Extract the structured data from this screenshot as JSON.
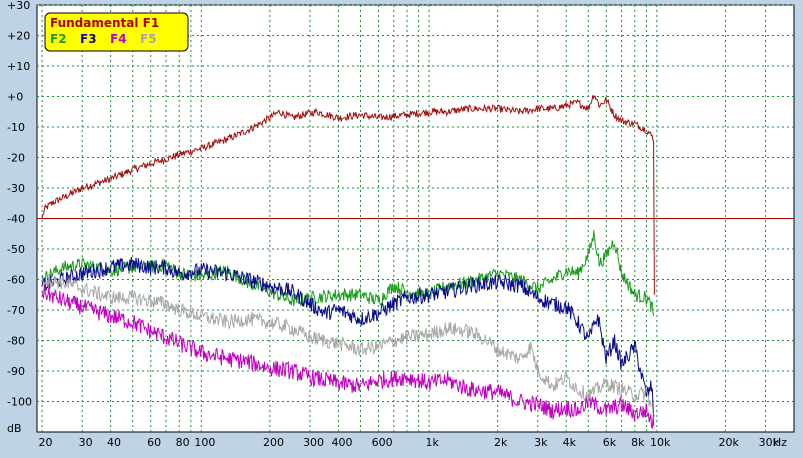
{
  "chart_data": {
    "type": "line",
    "title": "",
    "xlabel": "Hz",
    "ylabel": "dB",
    "xscale": "log",
    "xlim": [
      19,
      40000
    ],
    "ylim": [
      -110,
      30
    ],
    "grid": true,
    "legend_placement": "top-left",
    "y_ticks": [
      {
        "value": 30,
        "label": "+30"
      },
      {
        "value": 20,
        "label": "+20"
      },
      {
        "value": 10,
        "label": "+10"
      },
      {
        "value": 0,
        "label": "+0"
      },
      {
        "value": -10,
        "label": "-10"
      },
      {
        "value": -20,
        "label": "-20"
      },
      {
        "value": -30,
        "label": "-30"
      },
      {
        "value": -40,
        "label": "-40"
      },
      {
        "value": -50,
        "label": "-50"
      },
      {
        "value": -60,
        "label": "-60"
      },
      {
        "value": -70,
        "label": "-70"
      },
      {
        "value": -80,
        "label": "-80"
      },
      {
        "value": -90,
        "label": "-90"
      },
      {
        "value": -100,
        "label": "-100"
      }
    ],
    "x_ticks": [
      {
        "value": 20,
        "label": "20"
      },
      {
        "value": 30,
        "label": "30"
      },
      {
        "value": 40,
        "label": "40"
      },
      {
        "value": 60,
        "label": "60"
      },
      {
        "value": 80,
        "label": "80"
      },
      {
        "value": 100,
        "label": "100"
      },
      {
        "value": 200,
        "label": "200"
      },
      {
        "value": 300,
        "label": "300"
      },
      {
        "value": 400,
        "label": "400"
      },
      {
        "value": 600,
        "label": "600"
      },
      {
        "value": 1000,
        "label": "1k"
      },
      {
        "value": 2000,
        "label": "2k"
      },
      {
        "value": 3000,
        "label": "3k"
      },
      {
        "value": 4000,
        "label": "4k"
      },
      {
        "value": 6000,
        "label": "6k"
      },
      {
        "value": 8000,
        "label": "8k"
      },
      {
        "value": 10000,
        "label": "10k"
      },
      {
        "value": 20000,
        "label": "20k"
      },
      {
        "value": 30000,
        "label": "30k"
      }
    ],
    "minor_x_gridlines": [
      20,
      30,
      40,
      50,
      60,
      70,
      80,
      90,
      100,
      200,
      300,
      400,
      500,
      600,
      700,
      800,
      900,
      1000,
      2000,
      3000,
      4000,
      5000,
      6000,
      7000,
      8000,
      9000,
      10000,
      20000,
      30000,
      40000
    ],
    "reference_line": {
      "y": -40,
      "color": "#b00000"
    },
    "legend": {
      "title": "Fundamental F1",
      "items": [
        {
          "label": "F2",
          "color": "#1c9c1c"
        },
        {
          "label": "F3",
          "color": "#0a0a8c"
        },
        {
          "label": "F4",
          "color": "#c000c0"
        },
        {
          "label": "F5",
          "color": "#a8a8a8"
        }
      ]
    },
    "series": [
      {
        "name": "Fundamental F1",
        "color": "#a01010",
        "points": [
          [
            20,
            -40
          ],
          [
            20.5,
            -37
          ],
          [
            22,
            -35
          ],
          [
            25,
            -33
          ],
          [
            30,
            -30
          ],
          [
            40,
            -27
          ],
          [
            50,
            -24
          ],
          [
            60,
            -22
          ],
          [
            70,
            -20.5
          ],
          [
            80,
            -19
          ],
          [
            100,
            -17
          ],
          [
            120,
            -15
          ],
          [
            140,
            -13
          ],
          [
            160,
            -11
          ],
          [
            180,
            -9
          ],
          [
            200,
            -7
          ],
          [
            220,
            -5
          ],
          [
            250,
            -7
          ],
          [
            280,
            -6
          ],
          [
            320,
            -5
          ],
          [
            400,
            -7
          ],
          [
            500,
            -6
          ],
          [
            600,
            -7
          ],
          [
            800,
            -6
          ],
          [
            1000,
            -5
          ],
          [
            1200,
            -5
          ],
          [
            1500,
            -4
          ],
          [
            2000,
            -4
          ],
          [
            2500,
            -5
          ],
          [
            3000,
            -4
          ],
          [
            3500,
            -4
          ],
          [
            4000,
            -3
          ],
          [
            4500,
            -2
          ],
          [
            5000,
            -4
          ],
          [
            5300,
            1
          ],
          [
            5600,
            -3
          ],
          [
            6000,
            -1
          ],
          [
            6500,
            -6
          ],
          [
            7000,
            -8
          ],
          [
            8000,
            -9
          ],
          [
            9000,
            -11
          ],
          [
            9500,
            -13
          ],
          [
            9700,
            -14
          ],
          [
            9750,
            -65
          ]
        ],
        "noise": 1.2
      },
      {
        "name": "F2",
        "color": "#1c9c1c",
        "points": [
          [
            20,
            -60
          ],
          [
            22,
            -58
          ],
          [
            25,
            -56
          ],
          [
            30,
            -55
          ],
          [
            40,
            -57
          ],
          [
            50,
            -56
          ],
          [
            60,
            -56
          ],
          [
            70,
            -55
          ],
          [
            80,
            -58
          ],
          [
            100,
            -59
          ],
          [
            130,
            -57
          ],
          [
            160,
            -61
          ],
          [
            200,
            -64
          ],
          [
            250,
            -67
          ],
          [
            300,
            -66
          ],
          [
            400,
            -65
          ],
          [
            500,
            -65
          ],
          [
            600,
            -67
          ],
          [
            700,
            -62
          ],
          [
            800,
            -64
          ],
          [
            1000,
            -65
          ],
          [
            1200,
            -62
          ],
          [
            1500,
            -61
          ],
          [
            2000,
            -58
          ],
          [
            2500,
            -60
          ],
          [
            3000,
            -63
          ],
          [
            3500,
            -60
          ],
          [
            4000,
            -57
          ],
          [
            4500,
            -58
          ],
          [
            5000,
            -52
          ],
          [
            5300,
            -45
          ],
          [
            5600,
            -55
          ],
          [
            6000,
            -52
          ],
          [
            6500,
            -47
          ],
          [
            7000,
            -58
          ],
          [
            8000,
            -65
          ],
          [
            9000,
            -66
          ],
          [
            9500,
            -69
          ],
          [
            9700,
            -72
          ]
        ],
        "noise": 2.2
      },
      {
        "name": "F3",
        "color": "#0a0a8c",
        "points": [
          [
            20,
            -62
          ],
          [
            25,
            -60
          ],
          [
            30,
            -58
          ],
          [
            40,
            -56
          ],
          [
            50,
            -55
          ],
          [
            60,
            -56
          ],
          [
            70,
            -56
          ],
          [
            80,
            -58
          ],
          [
            100,
            -57
          ],
          [
            130,
            -58
          ],
          [
            160,
            -60
          ],
          [
            200,
            -62
          ],
          [
            250,
            -64
          ],
          [
            300,
            -68
          ],
          [
            350,
            -71
          ],
          [
            400,
            -70
          ],
          [
            500,
            -73
          ],
          [
            600,
            -71
          ],
          [
            700,
            -68
          ],
          [
            800,
            -66
          ],
          [
            1000,
            -65
          ],
          [
            1200,
            -64
          ],
          [
            1500,
            -62
          ],
          [
            2000,
            -61
          ],
          [
            2500,
            -62
          ],
          [
            3000,
            -66
          ],
          [
            3500,
            -68
          ],
          [
            4000,
            -69
          ],
          [
            4500,
            -74
          ],
          [
            5000,
            -80
          ],
          [
            5500,
            -72
          ],
          [
            6000,
            -86
          ],
          [
            6500,
            -80
          ],
          [
            7000,
            -88
          ],
          [
            8000,
            -82
          ],
          [
            9000,
            -98
          ],
          [
            9500,
            -95
          ],
          [
            9700,
            -105
          ]
        ],
        "noise": 2.6
      },
      {
        "name": "F4",
        "color": "#c000c0",
        "points": [
          [
            20,
            -64
          ],
          [
            25,
            -67
          ],
          [
            30,
            -69
          ],
          [
            40,
            -72
          ],
          [
            50,
            -74
          ],
          [
            60,
            -77
          ],
          [
            70,
            -79
          ],
          [
            80,
            -81
          ],
          [
            100,
            -84
          ],
          [
            130,
            -86
          ],
          [
            160,
            -87
          ],
          [
            200,
            -89
          ],
          [
            250,
            -90
          ],
          [
            300,
            -92
          ],
          [
            400,
            -94
          ],
          [
            500,
            -95
          ],
          [
            600,
            -93
          ],
          [
            800,
            -92
          ],
          [
            1000,
            -94
          ],
          [
            1200,
            -93
          ],
          [
            1500,
            -96
          ],
          [
            2000,
            -97
          ],
          [
            2500,
            -100
          ],
          [
            3000,
            -101
          ],
          [
            3500,
            -103
          ],
          [
            4000,
            -102
          ],
          [
            4500,
            -103
          ],
          [
            5000,
            -100
          ],
          [
            6000,
            -103
          ],
          [
            7000,
            -101
          ],
          [
            8000,
            -104
          ],
          [
            9000,
            -103
          ],
          [
            9700,
            -108
          ]
        ],
        "noise": 2.8
      },
      {
        "name": "F5",
        "color": "#a8a8a8",
        "points": [
          [
            20,
            -60
          ],
          [
            25,
            -61
          ],
          [
            30,
            -63
          ],
          [
            40,
            -66
          ],
          [
            50,
            -66
          ],
          [
            60,
            -67
          ],
          [
            70,
            -68
          ],
          [
            80,
            -70
          ],
          [
            100,
            -72
          ],
          [
            130,
            -74
          ],
          [
            160,
            -73
          ],
          [
            200,
            -74
          ],
          [
            250,
            -76
          ],
          [
            300,
            -79
          ],
          [
            400,
            -81
          ],
          [
            500,
            -83
          ],
          [
            600,
            -82
          ],
          [
            700,
            -80
          ],
          [
            800,
            -79
          ],
          [
            1000,
            -78
          ],
          [
            1200,
            -76
          ],
          [
            1500,
            -77
          ],
          [
            1800,
            -80
          ],
          [
            2000,
            -83
          ],
          [
            2500,
            -86
          ],
          [
            2800,
            -82
          ],
          [
            3000,
            -90
          ],
          [
            3500,
            -95
          ],
          [
            4000,
            -92
          ],
          [
            4500,
            -96
          ],
          [
            5000,
            -98
          ],
          [
            6000,
            -94
          ],
          [
            7000,
            -96
          ],
          [
            8000,
            -98
          ],
          [
            9000,
            -97
          ],
          [
            9700,
            -104
          ]
        ],
        "noise": 2.4
      }
    ]
  }
}
